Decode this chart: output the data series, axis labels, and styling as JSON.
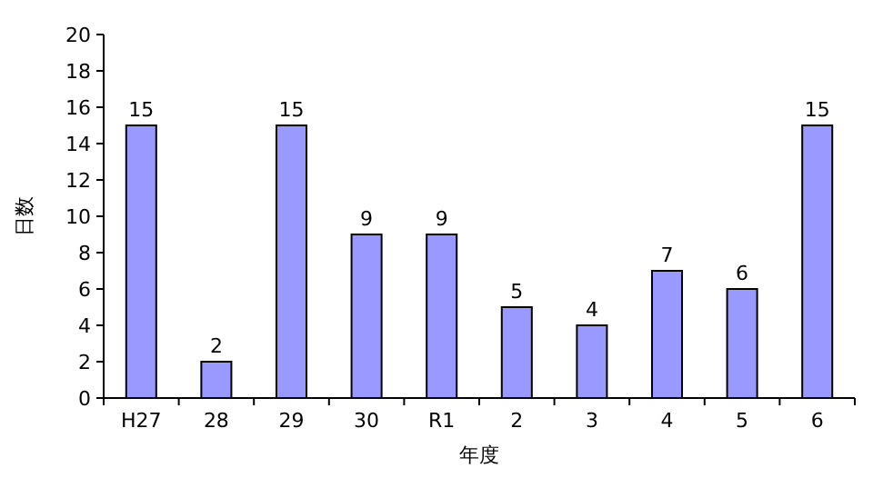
{
  "chart_data": {
    "type": "bar",
    "xlabel": "年度",
    "ylabel": "日数",
    "categories": [
      "H27",
      "28",
      "29",
      "30",
      "R1",
      "2",
      "3",
      "4",
      "5",
      "6"
    ],
    "values": [
      15,
      2,
      15,
      9,
      9,
      5,
      4,
      7,
      6,
      15
    ],
    "color": "#9999ff",
    "ylim": [
      0,
      20
    ],
    "yticks": [
      0,
      2,
      4,
      6,
      8,
      10,
      12,
      14,
      16,
      18,
      20
    ],
    "data_labels": true
  }
}
